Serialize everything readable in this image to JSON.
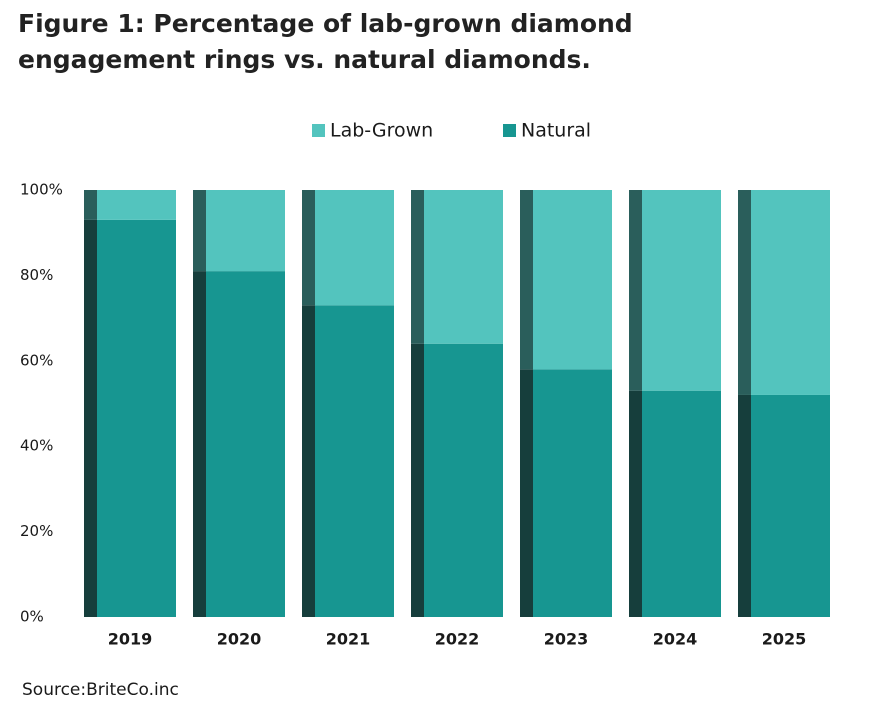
{
  "chart_data": {
    "type": "stacked-bar",
    "title": "Figure 1: Percentage of lab-grown diamond engagement rings vs. natural diamonds.",
    "categories": [
      "2019",
      "2020",
      "2021",
      "2022",
      "2023",
      "2024",
      "2025"
    ],
    "series": [
      {
        "name": "Natural",
        "color": "#179691",
        "side_color": "#163e3c",
        "values": [
          93,
          81,
          73,
          64,
          58,
          53,
          52
        ]
      },
      {
        "name": "Lab-Grown",
        "color": "#53c4be",
        "side_color": "#2a5e5b",
        "values": [
          7,
          19,
          27,
          36,
          42,
          47,
          48
        ]
      }
    ],
    "legend_order": [
      1,
      0
    ],
    "ylim": [
      0,
      100
    ],
    "yticks": [
      {
        "value": 0,
        "label": "0%"
      },
      {
        "value": 20,
        "label": "20%"
      },
      {
        "value": 40,
        "label": "40%"
      },
      {
        "value": 60,
        "label": "60%"
      },
      {
        "value": 80,
        "label": "80%"
      },
      {
        "value": 100,
        "label": "100%"
      }
    ],
    "grid": false,
    "source": "Source:BriteCo.inc"
  }
}
